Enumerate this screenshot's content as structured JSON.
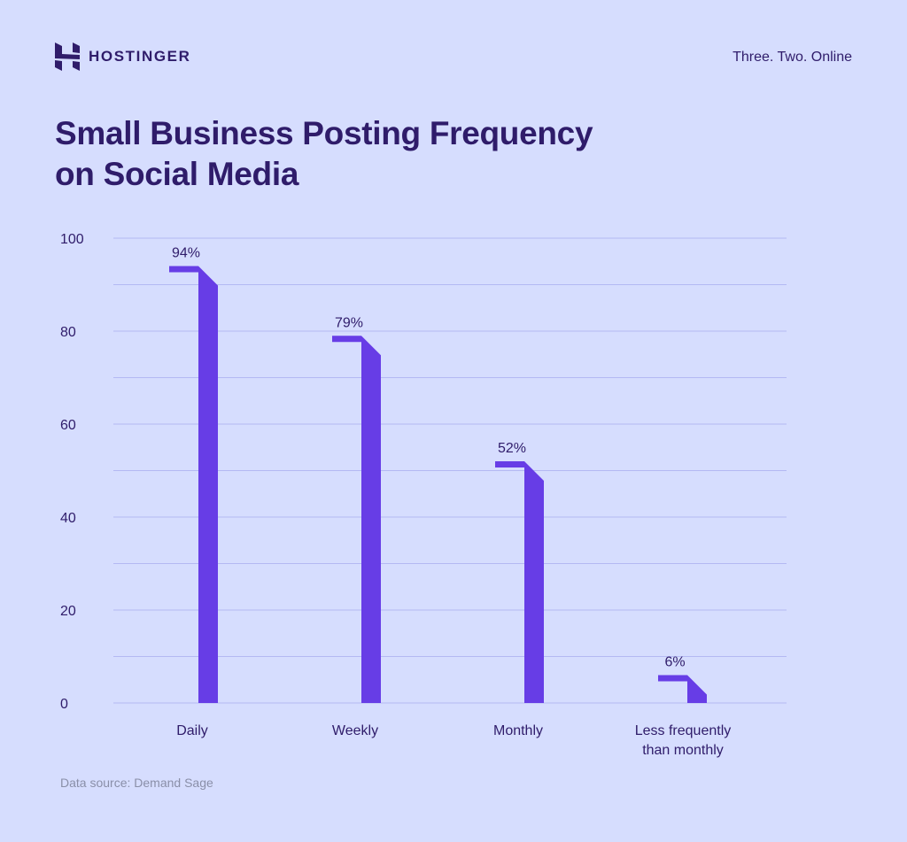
{
  "brand": {
    "name": "HOSTINGER",
    "logo_icon": "hostinger-h-logo",
    "tagline": "Three. Two. Online"
  },
  "colors": {
    "background": "#d6ddfe",
    "bar": "#673de6",
    "text": "#2f1c6a",
    "grid": "#b4b9f3",
    "source": "#8a8fa8"
  },
  "footer": {
    "source": "Data source: Demand Sage"
  },
  "chart_data": {
    "type": "bar",
    "title": "Small Business Posting Frequency on Social Media",
    "title_lines": [
      "Small Business Posting Frequency",
      "on Social Media"
    ],
    "categories": [
      [
        "Daily"
      ],
      [
        "Weekly"
      ],
      [
        "Monthly"
      ],
      [
        "Less frequently",
        "than monthly"
      ]
    ],
    "values": [
      94,
      79,
      52,
      6
    ],
    "data_labels": [
      "94%",
      "79%",
      "52%",
      "6%"
    ],
    "ylim": [
      0,
      100
    ],
    "yticks": [
      0,
      20,
      40,
      60,
      80,
      100
    ],
    "grid": true,
    "xlabel": "",
    "ylabel": ""
  }
}
